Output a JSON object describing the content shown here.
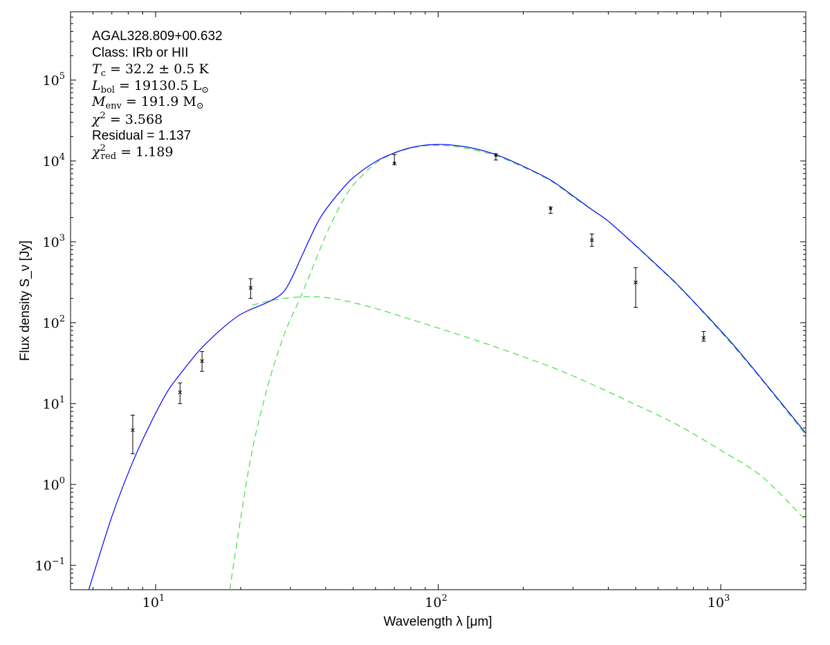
{
  "chart_data": {
    "type": "line",
    "x_scale": "log",
    "y_scale": "log",
    "xlim": [
      5,
      2000
    ],
    "ylim": [
      0.05,
      700000
    ],
    "xlabel": "Wavelength λ [μm]",
    "ylabel": "Flux density S_ν [Jy]",
    "x_ticks": [
      {
        "value": 10,
        "base": "10",
        "exp": "1"
      },
      {
        "value": 100,
        "base": "10",
        "exp": "2"
      },
      {
        "value": 1000,
        "base": "10",
        "exp": "3"
      }
    ],
    "y_ticks": [
      {
        "value": 0.1,
        "base": "10",
        "exp": "−1"
      },
      {
        "value": 1,
        "base": "10",
        "exp": "0"
      },
      {
        "value": 10,
        "base": "10",
        "exp": "1"
      },
      {
        "value": 100,
        "base": "10",
        "exp": "2"
      },
      {
        "value": 1000,
        "base": "10",
        "exp": "3"
      },
      {
        "value": 10000,
        "base": "10",
        "exp": "4"
      },
      {
        "value": 100000,
        "base": "10",
        "exp": "5"
      }
    ],
    "annotations": {
      "source": "AGAL328.809+00.632",
      "class": "Class: IRb or HII",
      "tc": {
        "sym": "T",
        "sub": "c",
        "text": " = 32.2 ± 0.5 K"
      },
      "lbol": {
        "sym": "L",
        "sub": "bol",
        "text": " = 19130.5 L",
        "unit_sub": "⊙"
      },
      "menv": {
        "sym": "M",
        "sub": "env",
        "text": " = 191.9 M",
        "unit_sub": "⊙"
      },
      "chi2": {
        "sym": "χ",
        "sup": "2",
        "text": " = 3.568"
      },
      "residual": "Residual = 1.137",
      "chi2red": {
        "sym": "χ",
        "sup": "2",
        "sub": "red",
        "text": " = 1.189"
      }
    },
    "series": [
      {
        "role": "total_fit",
        "style": "solid",
        "color": "#0000ff",
        "x": [
          5.8,
          7,
          8.25,
          9.5,
          11,
          12.2,
          13.5,
          14.65,
          17,
          19.5,
          21.6,
          25,
          28,
          30,
          33,
          37,
          40,
          45,
          50,
          60,
          70,
          80,
          90,
          100,
          110,
          130,
          160,
          200,
          250,
          300,
          350,
          400,
          500,
          600,
          700,
          870,
          1100,
          1400,
          2000
        ],
        "y": [
          0.05,
          0.4,
          1.8,
          5.3,
          14,
          23,
          36,
          50,
          82,
          120,
          145,
          180,
          230,
          330,
          680,
          1600,
          2500,
          4200,
          6200,
          9800,
          12600,
          14600,
          15700,
          16000,
          15800,
          14600,
          12000,
          8600,
          5800,
          3700,
          2500,
          1800,
          900,
          500,
          300,
          135,
          55,
          20,
          4.3
        ]
      },
      {
        "role": "hot_component",
        "style": "dashed",
        "color": "#44dd44",
        "x": [
          22,
          25,
          28,
          31,
          34,
          37,
          40,
          45,
          50,
          60,
          70,
          80,
          100,
          130,
          160,
          200,
          250,
          300,
          400,
          500,
          700,
          1000,
          1400,
          2000
        ],
        "y": [
          165,
          185,
          198,
          206,
          210,
          209,
          205,
          192,
          178,
          150,
          128,
          110,
          86,
          64,
          50,
          38,
          28.5,
          22,
          14,
          9.7,
          5.5,
          2.65,
          1.25,
          0.36
        ]
      },
      {
        "role": "cold_component",
        "style": "dashed",
        "color": "#44dd44",
        "x": [
          18.3,
          20,
          22,
          25,
          28,
          30,
          32,
          35,
          40,
          45,
          50,
          60,
          70,
          80,
          90,
          100,
          110,
          130,
          160,
          200,
          250,
          300,
          350,
          400,
          500,
          600,
          700,
          870,
          1100,
          1400,
          2000
        ],
        "y": [
          0.05,
          0.38,
          2.7,
          17,
          60,
          110,
          180,
          380,
          1200,
          2800,
          5000,
          9300,
          12500,
          14400,
          15400,
          15600,
          15300,
          14000,
          11600,
          8400,
          5700,
          3600,
          2500,
          1800,
          890,
          490,
          295,
          132,
          53,
          19.5,
          4.1
        ]
      }
    ],
    "points": [
      {
        "x": 8.3,
        "y": 4.7,
        "err_lo": 2.4,
        "err_hi": 7.2,
        "marker": "x"
      },
      {
        "x": 12.2,
        "y": 13.8,
        "err_lo": 10,
        "err_hi": 18,
        "marker": "x"
      },
      {
        "x": 14.6,
        "y": 33.5,
        "err_lo": 25,
        "err_hi": 44,
        "marker": "x"
      },
      {
        "x": 21.7,
        "y": 270,
        "err_lo": 200,
        "err_hi": 350,
        "marker": "x"
      },
      {
        "x": 70,
        "y": 10700,
        "err_lo": 9000,
        "err_hi": 12000,
        "marker": "upper"
      },
      {
        "x": 160,
        "y": 11500,
        "err_lo": 10300,
        "err_hi": 12300,
        "marker": "lower"
      },
      {
        "x": 250,
        "y": 2500,
        "err_lo": 2250,
        "err_hi": 2700,
        "marker": "lower"
      },
      {
        "x": 350,
        "y": 1050,
        "err_lo": 880,
        "err_hi": 1250,
        "marker": "x"
      },
      {
        "x": 500,
        "y": 315,
        "err_lo": 155,
        "err_hi": 480,
        "marker": "x"
      },
      {
        "x": 870,
        "y": 65,
        "err_lo": 59,
        "err_hi": 78,
        "marker": "x"
      }
    ]
  }
}
